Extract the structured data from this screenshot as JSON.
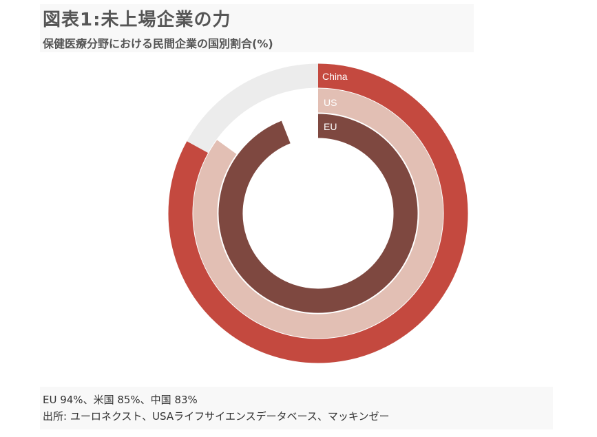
{
  "header": {
    "title": "図表1:未上場企業の力",
    "subtitle": "保健医療分野における民間企業の国別割合(%)"
  },
  "footer": {
    "values_note": "EU 94%、米国 85%、中国 83%",
    "source_note": "出所: ユーロネクスト、USAライフサイエンスデータベース、マッキンゼー"
  },
  "colors": {
    "china": "#c4493f",
    "us": "#e2bfb4",
    "eu": "#7e4840",
    "track": "#ececec"
  },
  "chart_data": {
    "type": "donut",
    "unit": "%",
    "series": [
      {
        "name": "China",
        "value": 83
      },
      {
        "name": "US",
        "value": 85
      },
      {
        "name": "EU",
        "value": 94
      }
    ]
  }
}
